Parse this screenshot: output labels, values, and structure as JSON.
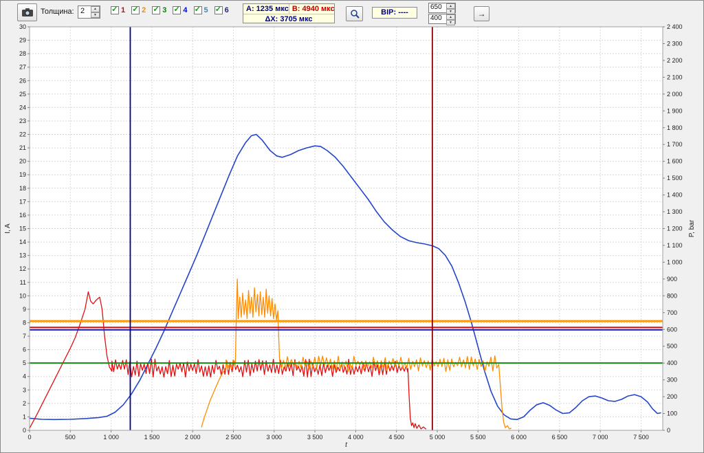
{
  "toolbar": {
    "thickness_label": "Толщина:",
    "thickness_value": "2",
    "channels": [
      {
        "label": "1",
        "checked": true,
        "color": "#dd0000"
      },
      {
        "label": "2",
        "checked": true,
        "color": "#ff8800"
      },
      {
        "label": "3",
        "checked": true,
        "color": "#008800"
      },
      {
        "label": "4",
        "checked": true,
        "color": "#0000dd"
      },
      {
        "label": "5",
        "checked": true,
        "color": "#3388cc"
      },
      {
        "label": "6",
        "checked": true,
        "color": "#222288"
      }
    ],
    "cursor_a_label": "A: 1235 мкс",
    "cursor_b_label": "B: 4940 мкс",
    "delta_label": "ΔX: 3705 мкс",
    "bip_label": "BIP: ----",
    "threshold_top_value": "650",
    "threshold_bottom_value": "400",
    "arrow_button_label": "→",
    "icons": {
      "camera": "camera-icon",
      "zoom": "zoom-tool-icon"
    }
  },
  "chart_data": {
    "type": "line",
    "xlabel": "t",
    "ylabel_left": "I, A",
    "ylabel_right": "P, bar",
    "x_range": [
      0,
      7766
    ],
    "y_left_range": [
      0,
      30
    ],
    "y_right_range": [
      0,
      2400
    ],
    "x_tick_step": 500,
    "y_left_tick_step": 1,
    "y_right_tick_step": 100,
    "grid": true,
    "cursors": [
      {
        "name": "A",
        "x": 1235,
        "color": "#000080"
      },
      {
        "name": "B",
        "x": 4940,
        "color": "#8b0000"
      }
    ],
    "thresholds": [
      {
        "name": "threshold-orange-650-bar",
        "bar": 650,
        "a": 8.12,
        "color": "#ff9900",
        "w": 3
      },
      {
        "name": "threshold-red-612-bar",
        "bar": 612,
        "a": 7.65,
        "color": "#e01010",
        "w": 2.2
      },
      {
        "name": "threshold-blue-598-bar",
        "bar": 598,
        "a": 7.47,
        "color": "#2020d0",
        "w": 2.2
      },
      {
        "name": "threshold-green-400-bar",
        "bar": 400,
        "a": 5.0,
        "color": "#118811",
        "w": 2
      }
    ],
    "series": [
      {
        "name": "series-4-blue",
        "color": "#2244cc",
        "width": 1.6,
        "segments": [
          {
            "type": "poly",
            "points": [
              [
                0,
                0.9
              ],
              [
                150,
                0.82
              ],
              [
                300,
                0.8
              ],
              [
                500,
                0.82
              ],
              [
                700,
                0.88
              ],
              [
                850,
                0.95
              ],
              [
                950,
                1.05
              ],
              [
                1050,
                1.35
              ],
              [
                1150,
                1.9
              ],
              [
                1250,
                2.7
              ],
              [
                1350,
                3.7
              ],
              [
                1450,
                4.9
              ],
              [
                1550,
                6.1
              ],
              [
                1650,
                7.4
              ],
              [
                1750,
                8.8
              ],
              [
                1850,
                10.2
              ],
              [
                1950,
                11.6
              ],
              [
                2050,
                13.0
              ],
              [
                2150,
                14.5
              ],
              [
                2250,
                16.0
              ],
              [
                2350,
                17.5
              ],
              [
                2450,
                19.0
              ],
              [
                2550,
                20.4
              ],
              [
                2650,
                21.4
              ],
              [
                2720,
                21.9
              ],
              [
                2780,
                22.0
              ],
              [
                2850,
                21.6
              ],
              [
                2950,
                20.8
              ],
              [
                3030,
                20.4
              ],
              [
                3100,
                20.3
              ],
              [
                3200,
                20.5
              ],
              [
                3300,
                20.8
              ],
              [
                3400,
                21.0
              ],
              [
                3500,
                21.15
              ],
              [
                3570,
                21.1
              ],
              [
                3650,
                20.8
              ],
              [
                3750,
                20.3
              ],
              [
                3850,
                19.6
              ],
              [
                3950,
                18.8
              ],
              [
                4050,
                18.0
              ],
              [
                4150,
                17.2
              ],
              [
                4250,
                16.3
              ],
              [
                4350,
                15.5
              ],
              [
                4450,
                14.9
              ],
              [
                4550,
                14.4
              ],
              [
                4650,
                14.1
              ],
              [
                4750,
                13.95
              ],
              [
                4850,
                13.85
              ],
              [
                4950,
                13.7
              ],
              [
                5020,
                13.5
              ],
              [
                5100,
                13.0
              ],
              [
                5180,
                12.2
              ],
              [
                5260,
                11.0
              ],
              [
                5340,
                9.6
              ],
              [
                5420,
                8.0
              ],
              [
                5500,
                6.2
              ],
              [
                5580,
                4.4
              ],
              [
                5660,
                2.9
              ],
              [
                5740,
                1.8
              ],
              [
                5820,
                1.15
              ],
              [
                5900,
                0.85
              ],
              [
                5980,
                0.8
              ],
              [
                6060,
                1.0
              ],
              [
                6140,
                1.5
              ],
              [
                6220,
                1.9
              ],
              [
                6300,
                2.05
              ],
              [
                6380,
                1.85
              ],
              [
                6460,
                1.5
              ],
              [
                6540,
                1.25
              ],
              [
                6620,
                1.3
              ],
              [
                6700,
                1.7
              ],
              [
                6780,
                2.2
              ],
              [
                6860,
                2.5
              ],
              [
                6940,
                2.55
              ],
              [
                7020,
                2.4
              ],
              [
                7100,
                2.2
              ],
              [
                7180,
                2.15
              ],
              [
                7260,
                2.3
              ],
              [
                7340,
                2.55
              ],
              [
                7420,
                2.65
              ],
              [
                7500,
                2.5
              ],
              [
                7580,
                2.1
              ],
              [
                7640,
                1.6
              ],
              [
                7700,
                1.25
              ],
              [
                7740,
                1.3
              ]
            ]
          }
        ]
      },
      {
        "name": "series-1-red",
        "color": "#e01010",
        "width": 1.3,
        "segments": [
          {
            "type": "poly",
            "points": [
              [
                0,
                0.15
              ],
              [
                100,
                1.3
              ],
              [
                200,
                2.5
              ],
              [
                300,
                3.7
              ],
              [
                400,
                4.9
              ],
              [
                500,
                6.1
              ],
              [
                560,
                6.9
              ],
              [
                620,
                7.9
              ],
              [
                680,
                9.0
              ],
              [
                720,
                10.3
              ],
              [
                750,
                9.6
              ],
              [
                780,
                9.4
              ],
              [
                820,
                9.7
              ],
              [
                860,
                9.9
              ],
              [
                890,
                9.0
              ],
              [
                920,
                7.0
              ],
              [
                950,
                5.5
              ],
              [
                980,
                4.7
              ],
              [
                1010,
                4.4
              ]
            ]
          },
          {
            "type": "saw",
            "t0": 1010,
            "t1": 4640,
            "min": 3.95,
            "max": 5.3,
            "period": 44
          },
          {
            "type": "poly",
            "points": [
              [
                4640,
                4.6
              ],
              [
                4655,
                2.5
              ],
              [
                4670,
                0.9
              ],
              [
                4685,
                0.35
              ],
              [
                4700,
                0.55
              ],
              [
                4715,
                0.2
              ],
              [
                4730,
                0.5
              ],
              [
                4750,
                0.15
              ],
              [
                4775,
                0.4
              ],
              [
                4800,
                0.1
              ],
              [
                4830,
                0.25
              ],
              [
                4860,
                0.1
              ]
            ]
          }
        ]
      },
      {
        "name": "series-2-orange",
        "color": "#ff8c00",
        "width": 1.3,
        "segments": [
          {
            "type": "poly",
            "points": [
              [
                2110,
                0.25
              ],
              [
                2140,
                0.9
              ],
              [
                2180,
                1.6
              ],
              [
                2220,
                2.3
              ],
              [
                2270,
                3.0
              ],
              [
                2320,
                3.7
              ],
              [
                2370,
                4.3
              ],
              [
                2410,
                4.7
              ]
            ]
          },
          {
            "type": "saw",
            "t0": 2410,
            "t1": 2520,
            "min": 4.3,
            "max": 5.3,
            "period": 44
          },
          {
            "type": "poly",
            "points": [
              [
                2525,
                5.2
              ],
              [
                2535,
                8.1
              ],
              [
                2548,
                11.25
              ],
              [
                2560,
                8.3
              ],
              [
                2578,
                9.9
              ],
              [
                2596,
                8.4
              ],
              [
                2614,
                10.2
              ],
              [
                2632,
                8.6
              ],
              [
                2650,
                9.7
              ],
              [
                2668,
                8.3
              ],
              [
                2686,
                10.4
              ],
              [
                2704,
                8.7
              ],
              [
                2722,
                9.9
              ],
              [
                2740,
                8.4
              ],
              [
                2758,
                10.6
              ],
              [
                2776,
                8.8
              ],
              [
                2794,
                10.1
              ],
              [
                2812,
                8.5
              ],
              [
                2830,
                10.3
              ],
              [
                2848,
                8.6
              ],
              [
                2866,
                9.9
              ],
              [
                2884,
                8.4
              ],
              [
                2902,
                10.5
              ],
              [
                2920,
                8.7
              ],
              [
                2938,
                10.0
              ],
              [
                2956,
                8.5
              ],
              [
                2974,
                9.8
              ],
              [
                2992,
                8.3
              ],
              [
                3010,
                9.4
              ],
              [
                3028,
                8.2
              ],
              [
                3046,
                8.9
              ],
              [
                3058,
                6.5
              ],
              [
                3066,
                5.4
              ]
            ]
          },
          {
            "type": "saw",
            "t0": 3066,
            "t1": 5750,
            "min": 4.35,
            "max": 5.55,
            "period": 48
          },
          {
            "type": "poly",
            "points": [
              [
                5755,
                4.9
              ],
              [
                5775,
                3.2
              ],
              [
                5795,
                1.6
              ],
              [
                5815,
                0.6
              ],
              [
                5835,
                0.2
              ],
              [
                5860,
                0.35
              ],
              [
                5885,
                0.1
              ],
              [
                5905,
                0.15
              ]
            ]
          }
        ]
      }
    ]
  }
}
